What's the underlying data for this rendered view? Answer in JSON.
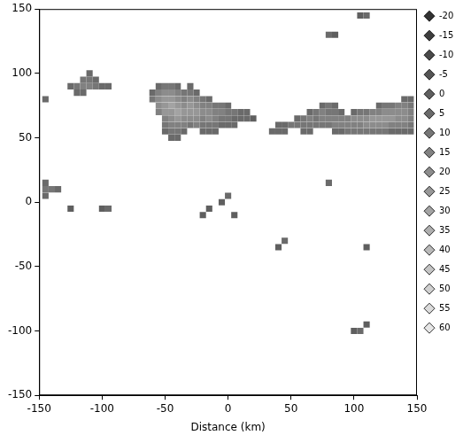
{
  "chart_data": {
    "type": "heatmap",
    "x_label": "Distance (km)",
    "xlim": [
      -150,
      150
    ],
    "xticks": [
      -150,
      -100,
      -50,
      0,
      50,
      100,
      150
    ],
    "ylim": [
      -150,
      150
    ],
    "yticks": [
      -150,
      -100,
      -50,
      0,
      50,
      100,
      150
    ],
    "grid": false,
    "colorbar": {
      "range": [
        -20,
        60
      ],
      "ticks": [
        -20,
        -15,
        -10,
        -5,
        0,
        5,
        10,
        15,
        20,
        25,
        30,
        35,
        40,
        45,
        50,
        55,
        60
      ]
    },
    "cells": [
      [
        -55,
        90,
        5
      ],
      [
        -50,
        90,
        10
      ],
      [
        -45,
        90,
        10
      ],
      [
        -40,
        90,
        5
      ],
      [
        -30,
        90,
        5
      ],
      [
        -60,
        85,
        5
      ],
      [
        -55,
        85,
        15
      ],
      [
        -50,
        85,
        20
      ],
      [
        -45,
        85,
        20
      ],
      [
        -40,
        85,
        15
      ],
      [
        -35,
        85,
        10
      ],
      [
        -30,
        85,
        10
      ],
      [
        -25,
        85,
        5
      ],
      [
        -60,
        80,
        10
      ],
      [
        -55,
        80,
        20
      ],
      [
        -50,
        80,
        25
      ],
      [
        -45,
        80,
        25
      ],
      [
        -40,
        80,
        20
      ],
      [
        -35,
        80,
        15
      ],
      [
        -30,
        80,
        20
      ],
      [
        -25,
        80,
        15
      ],
      [
        -20,
        80,
        10
      ],
      [
        -15,
        80,
        5
      ],
      [
        -55,
        75,
        20
      ],
      [
        -50,
        75,
        25
      ],
      [
        -45,
        75,
        30
      ],
      [
        -40,
        75,
        25
      ],
      [
        -35,
        75,
        20
      ],
      [
        -30,
        75,
        25
      ],
      [
        -25,
        75,
        20
      ],
      [
        -20,
        75,
        15
      ],
      [
        -15,
        75,
        15
      ],
      [
        -10,
        75,
        10
      ],
      [
        -5,
        75,
        10
      ],
      [
        0,
        75,
        5
      ],
      [
        -55,
        70,
        15
      ],
      [
        -50,
        70,
        25
      ],
      [
        -45,
        70,
        25
      ],
      [
        -40,
        70,
        30
      ],
      [
        -35,
        70,
        25
      ],
      [
        -30,
        70,
        25
      ],
      [
        -25,
        70,
        25
      ],
      [
        -20,
        70,
        20
      ],
      [
        -15,
        70,
        20
      ],
      [
        -10,
        70,
        15
      ],
      [
        -5,
        70,
        15
      ],
      [
        0,
        70,
        10
      ],
      [
        5,
        70,
        10
      ],
      [
        10,
        70,
        5
      ],
      [
        15,
        70,
        5
      ],
      [
        -50,
        65,
        15
      ],
      [
        -45,
        65,
        20
      ],
      [
        -40,
        65,
        25
      ],
      [
        -35,
        65,
        20
      ],
      [
        -30,
        65,
        20
      ],
      [
        -25,
        65,
        20
      ],
      [
        -20,
        65,
        15
      ],
      [
        -15,
        65,
        20
      ],
      [
        -10,
        65,
        15
      ],
      [
        -5,
        65,
        10
      ],
      [
        0,
        65,
        10
      ],
      [
        5,
        65,
        5
      ],
      [
        10,
        65,
        5
      ],
      [
        15,
        65,
        5
      ],
      [
        20,
        65,
        0
      ],
      [
        -50,
        60,
        10
      ],
      [
        -45,
        60,
        15
      ],
      [
        -40,
        60,
        15
      ],
      [
        -35,
        60,
        15
      ],
      [
        -30,
        60,
        10
      ],
      [
        -25,
        60,
        15
      ],
      [
        -20,
        60,
        10
      ],
      [
        -15,
        60,
        10
      ],
      [
        -10,
        60,
        10
      ],
      [
        -5,
        60,
        5
      ],
      [
        0,
        60,
        5
      ],
      [
        5,
        60,
        5
      ],
      [
        -50,
        55,
        5
      ],
      [
        -45,
        55,
        10
      ],
      [
        -40,
        55,
        10
      ],
      [
        -35,
        55,
        5
      ],
      [
        -20,
        55,
        5
      ],
      [
        -15,
        55,
        5
      ],
      [
        -10,
        55,
        5
      ],
      [
        -45,
        50,
        5
      ],
      [
        -40,
        50,
        5
      ],
      [
        140,
        80,
        5
      ],
      [
        145,
        80,
        5
      ],
      [
        75,
        75,
        5
      ],
      [
        80,
        75,
        10
      ],
      [
        85,
        75,
        5
      ],
      [
        120,
        75,
        5
      ],
      [
        125,
        75,
        10
      ],
      [
        130,
        75,
        10
      ],
      [
        135,
        75,
        15
      ],
      [
        140,
        75,
        15
      ],
      [
        145,
        75,
        10
      ],
      [
        65,
        70,
        5
      ],
      [
        70,
        70,
        10
      ],
      [
        75,
        70,
        15
      ],
      [
        80,
        70,
        10
      ],
      [
        85,
        70,
        10
      ],
      [
        90,
        70,
        5
      ],
      [
        100,
        70,
        5
      ],
      [
        105,
        70,
        10
      ],
      [
        110,
        70,
        10
      ],
      [
        115,
        70,
        15
      ],
      [
        120,
        70,
        15
      ],
      [
        125,
        70,
        20
      ],
      [
        130,
        70,
        20
      ],
      [
        135,
        70,
        20
      ],
      [
        140,
        70,
        20
      ],
      [
        145,
        70,
        15
      ],
      [
        55,
        65,
        5
      ],
      [
        60,
        65,
        10
      ],
      [
        65,
        65,
        15
      ],
      [
        70,
        65,
        10
      ],
      [
        75,
        65,
        15
      ],
      [
        80,
        65,
        15
      ],
      [
        85,
        65,
        15
      ],
      [
        90,
        65,
        15
      ],
      [
        95,
        65,
        15
      ],
      [
        100,
        65,
        20
      ],
      [
        105,
        65,
        20
      ],
      [
        110,
        65,
        20
      ],
      [
        115,
        65,
        25
      ],
      [
        120,
        65,
        25
      ],
      [
        125,
        65,
        25
      ],
      [
        130,
        65,
        25
      ],
      [
        135,
        65,
        20
      ],
      [
        140,
        65,
        20
      ],
      [
        145,
        65,
        15
      ],
      [
        40,
        60,
        5
      ],
      [
        45,
        60,
        5
      ],
      [
        50,
        60,
        10
      ],
      [
        55,
        60,
        10
      ],
      [
        60,
        60,
        10
      ],
      [
        65,
        60,
        10
      ],
      [
        70,
        60,
        10
      ],
      [
        75,
        60,
        10
      ],
      [
        80,
        60,
        10
      ],
      [
        85,
        60,
        15
      ],
      [
        90,
        60,
        15
      ],
      [
        95,
        60,
        15
      ],
      [
        100,
        60,
        15
      ],
      [
        105,
        60,
        15
      ],
      [
        110,
        60,
        20
      ],
      [
        115,
        60,
        20
      ],
      [
        120,
        60,
        20
      ],
      [
        125,
        60,
        20
      ],
      [
        130,
        60,
        15
      ],
      [
        135,
        60,
        15
      ],
      [
        140,
        60,
        15
      ],
      [
        145,
        60,
        10
      ],
      [
        35,
        55,
        5
      ],
      [
        40,
        55,
        5
      ],
      [
        45,
        55,
        5
      ],
      [
        60,
        55,
        5
      ],
      [
        65,
        55,
        5
      ],
      [
        85,
        55,
        5
      ],
      [
        90,
        55,
        5
      ],
      [
        95,
        55,
        10
      ],
      [
        100,
        55,
        10
      ],
      [
        105,
        55,
        10
      ],
      [
        110,
        55,
        10
      ],
      [
        115,
        55,
        10
      ],
      [
        120,
        55,
        10
      ],
      [
        125,
        55,
        10
      ],
      [
        130,
        55,
        5
      ],
      [
        135,
        55,
        5
      ],
      [
        140,
        55,
        5
      ],
      [
        145,
        55,
        5
      ],
      [
        -110,
        100,
        5
      ],
      [
        -115,
        95,
        10
      ],
      [
        -110,
        95,
        10
      ],
      [
        -105,
        95,
        5
      ],
      [
        -125,
        90,
        5
      ],
      [
        -120,
        90,
        10
      ],
      [
        -115,
        90,
        15
      ],
      [
        -110,
        90,
        15
      ],
      [
        -105,
        90,
        10
      ],
      [
        -100,
        90,
        5
      ],
      [
        -95,
        90,
        5
      ],
      [
        -120,
        85,
        5
      ],
      [
        -115,
        85,
        5
      ],
      [
        -145,
        80,
        5
      ],
      [
        -145,
        15,
        5
      ],
      [
        -145,
        10,
        10
      ],
      [
        -140,
        10,
        10
      ],
      [
        -135,
        10,
        5
      ],
      [
        -145,
        5,
        5
      ],
      [
        -125,
        -5,
        0
      ],
      [
        -100,
        -5,
        0
      ],
      [
        -95,
        -5,
        5
      ],
      [
        0,
        5,
        5
      ],
      [
        -5,
        0,
        0
      ],
      [
        -15,
        -5,
        0
      ],
      [
        -20,
        -10,
        0
      ],
      [
        5,
        -10,
        0
      ],
      [
        45,
        -30,
        5
      ],
      [
        40,
        -35,
        0
      ],
      [
        80,
        15,
        5
      ],
      [
        110,
        -35,
        0
      ],
      [
        100,
        -100,
        0
      ],
      [
        105,
        -100,
        5
      ],
      [
        110,
        -95,
        0
      ],
      [
        80,
        130,
        5
      ],
      [
        85,
        130,
        0
      ],
      [
        105,
        145,
        0
      ],
      [
        110,
        145,
        5
      ]
    ]
  }
}
